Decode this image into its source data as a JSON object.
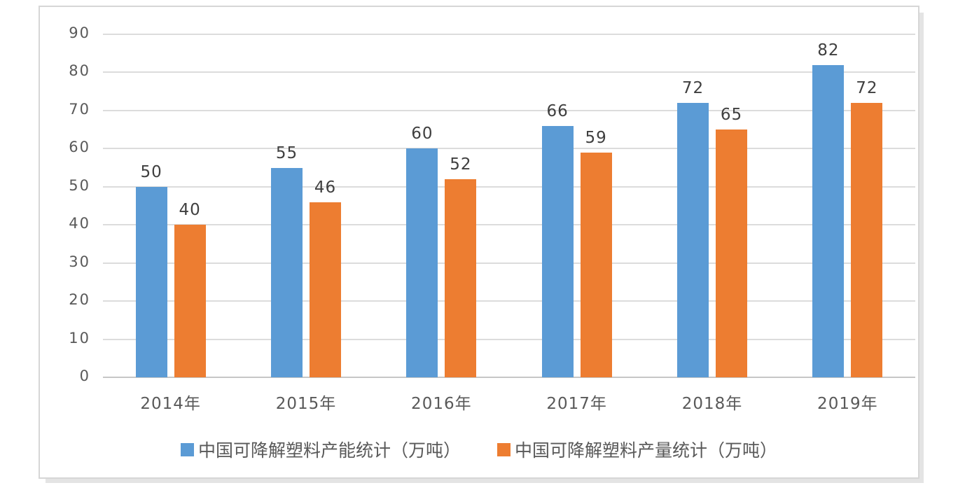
{
  "chart_data": {
    "type": "bar",
    "title": "",
    "xlabel": "",
    "ylabel": "",
    "categories": [
      "2014年",
      "2015年",
      "2016年",
      "2017年",
      "2018年",
      "2019年"
    ],
    "series": [
      {
        "id": "capacity",
        "name": "中国可降解塑料产能统计（万吨）",
        "color": "#5B9BD5",
        "values": [
          50,
          55,
          60,
          66,
          72,
          82
        ]
      },
      {
        "id": "output",
        "name": "中国可降解塑料产量统计（万吨）",
        "color": "#ED7D31",
        "values": [
          40,
          46,
          52,
          59,
          65,
          72
        ]
      }
    ],
    "ylim": [
      0,
      90
    ],
    "yticks": [
      0,
      10,
      20,
      30,
      40,
      50,
      60,
      70,
      80,
      90
    ],
    "grid": true,
    "data_labels": true,
    "legend_position": "bottom"
  },
  "style": {
    "gridline_color": "#DCDCDC",
    "axis_line_color": "#C6C6C6",
    "tick_label_color": "#595959",
    "data_label_color": "#3F3F3F",
    "x_label_color": "#595959",
    "legend_label_color": "#595959",
    "frame_border_color": "#D6D6D6",
    "background_color": "#FFFFFF"
  }
}
